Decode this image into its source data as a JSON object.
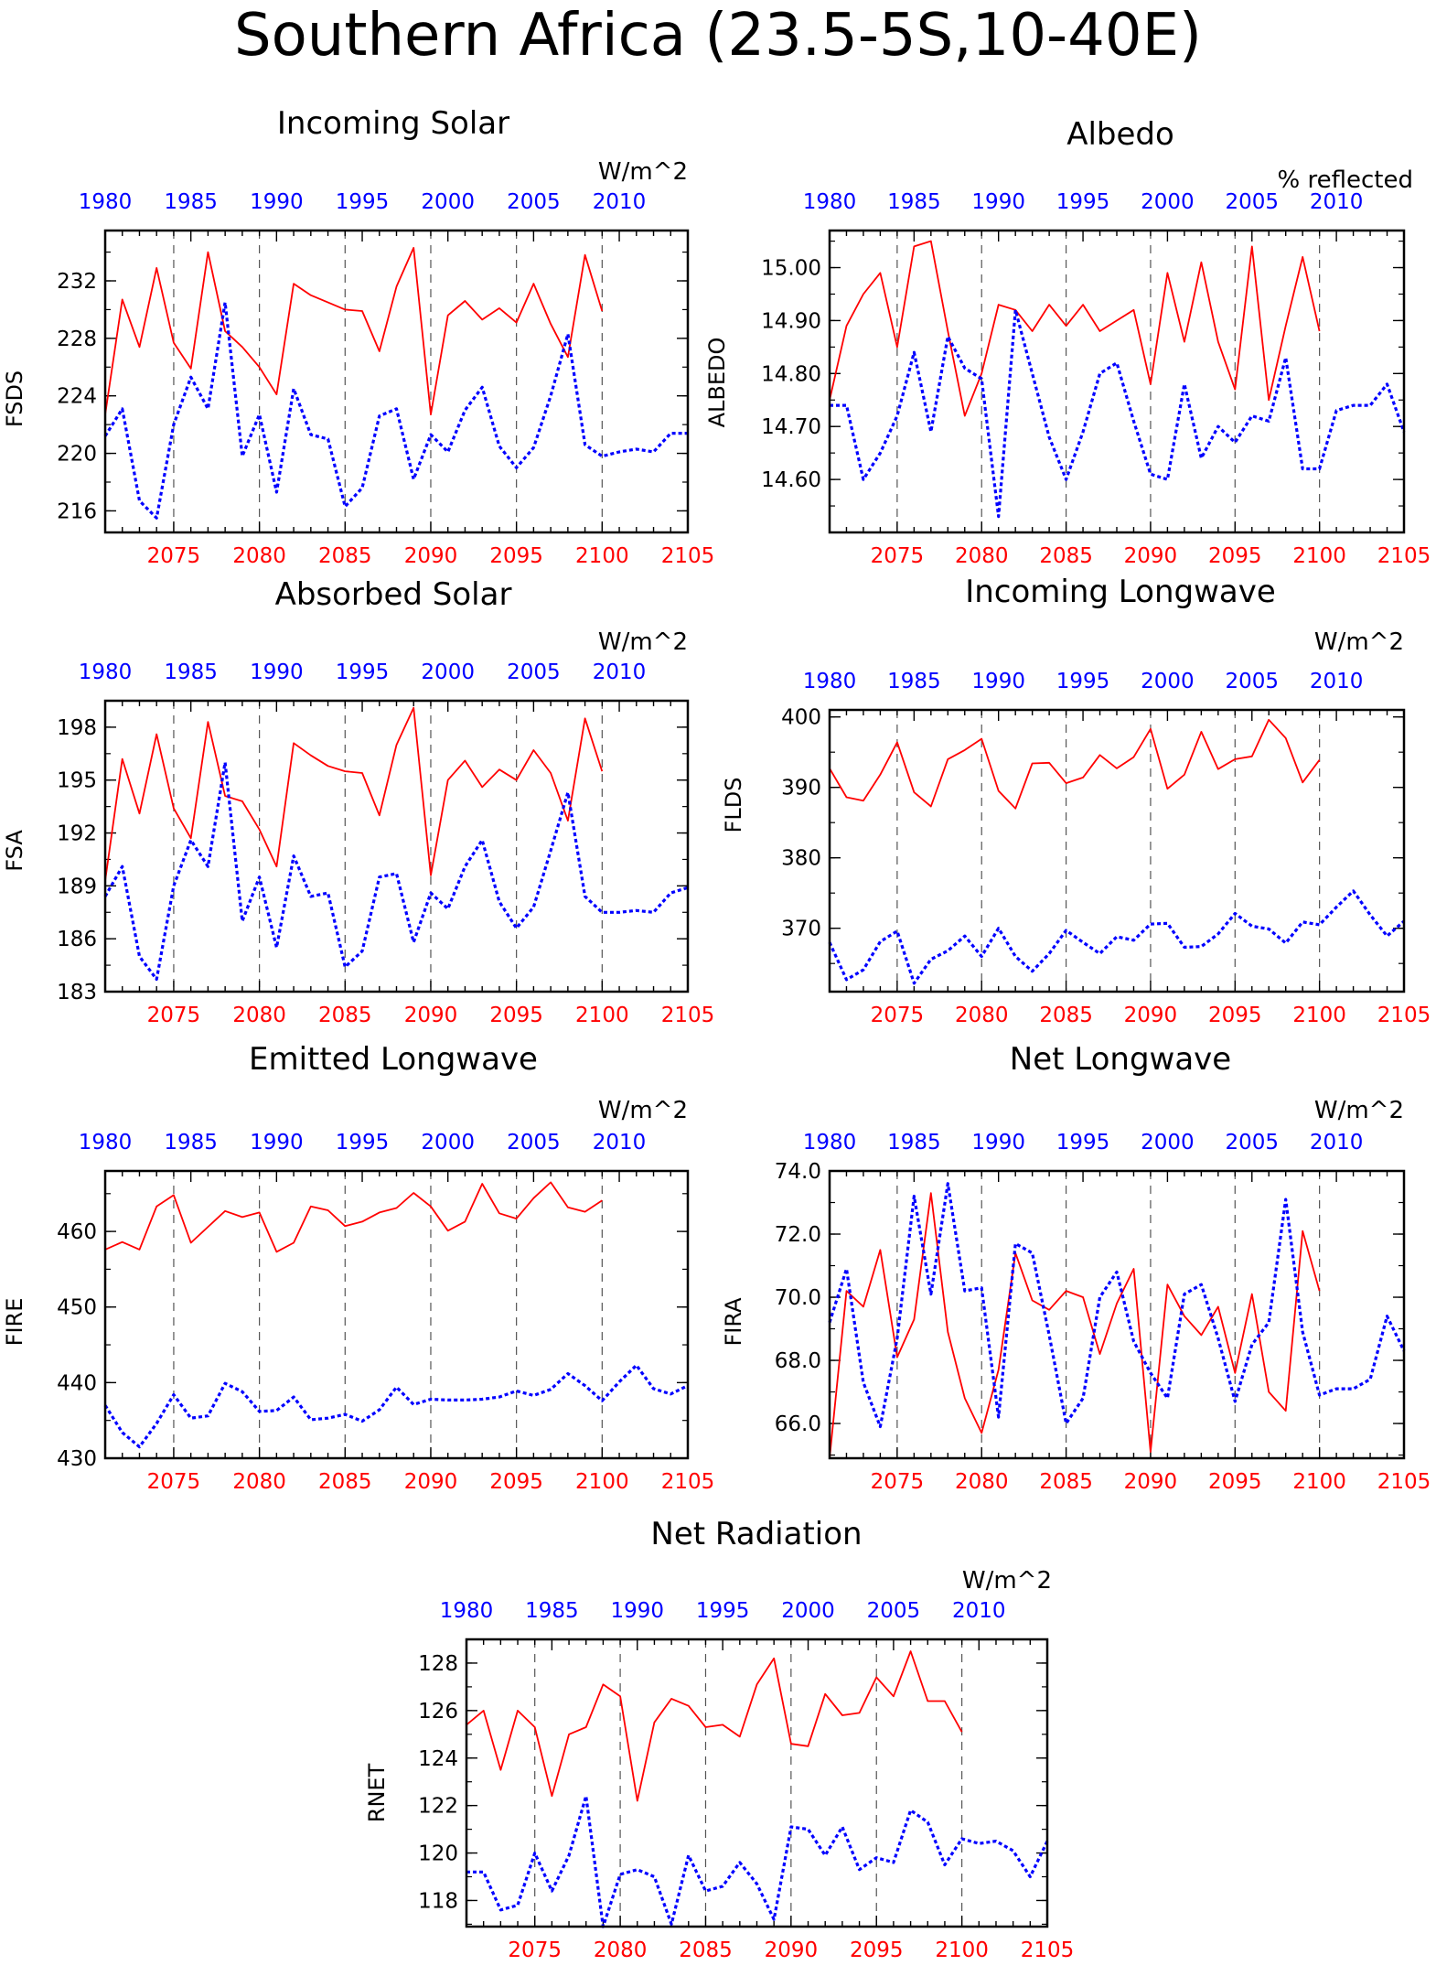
{
  "figure_title": "Southern Africa (23.5-5S,10-40E)",
  "colors": {
    "future_series": "#ff0000",
    "historical_series": "#0000ff",
    "axis": "#000000",
    "gridline": "#555555"
  },
  "chart_data": [
    {
      "id": "fsds",
      "type": "line",
      "title": "Incoming Solar",
      "units": "W/m^2",
      "ylabel": "FSDS",
      "ylim": [
        214.5,
        235.5
      ],
      "yticks": [
        "216",
        "220",
        "224",
        "228",
        "232"
      ],
      "ytick_values": [
        216,
        220,
        224,
        228,
        232
      ],
      "xlim_bottom": [
        2071,
        2105
      ],
      "xticks_bottom": [
        2075,
        2080,
        2085,
        2090,
        2095,
        2100,
        2105
      ],
      "xlim_top": [
        1980,
        2014
      ],
      "xticks_top": [
        1980,
        1985,
        1990,
        1995,
        2000,
        2005,
        2010
      ],
      "vlines": [
        2075,
        2080,
        2085,
        2090,
        2095,
        2100
      ],
      "series": [
        {
          "x_start": 2071,
          "values": [
            222.7,
            230.7,
            227.4,
            232.9,
            227.7,
            225.9,
            234.0,
            228.5,
            227.4,
            226.0,
            224.1,
            231.8,
            231.0,
            230.5,
            230.0,
            229.9,
            227.1,
            231.6,
            234.3,
            222.7,
            229.6,
            230.6,
            229.3,
            230.1,
            229.1,
            231.8,
            229.0,
            226.7,
            233.8,
            229.9
          ]
        },
        {
          "x_start": 2071,
          "values": [
            221.2,
            223.1,
            216.7,
            215.5,
            222.0,
            225.3,
            223.1,
            230.5,
            219.8,
            222.7,
            217.3,
            224.5,
            221.3,
            221.0,
            216.3,
            217.6,
            222.6,
            223.1,
            218.2,
            221.3,
            220.1,
            223.0,
            224.6,
            220.5,
            219.0,
            220.4,
            224.0,
            228.3,
            220.6,
            219.8,
            220.1,
            220.3,
            220.1,
            221.4,
            221.4
          ]
        }
      ]
    },
    {
      "id": "albedo",
      "type": "line",
      "title": "Albedo",
      "units": "% reflected",
      "ylabel": "ALBEDO",
      "ylim": [
        14.5,
        15.07
      ],
      "yticks": [
        "14.60",
        "14.70",
        "14.80",
        "14.90",
        "15.00"
      ],
      "ytick_values": [
        14.6,
        14.7,
        14.8,
        14.9,
        15.0
      ],
      "xlim_bottom": [
        2071,
        2105
      ],
      "xticks_bottom": [
        2075,
        2080,
        2085,
        2090,
        2095,
        2100,
        2105
      ],
      "xlim_top": [
        1980,
        2014
      ],
      "xticks_top": [
        1980,
        1985,
        1990,
        1995,
        2000,
        2005,
        2010
      ],
      "vlines": [
        2075,
        2080,
        2085,
        2090,
        2095,
        2100
      ],
      "series": [
        {
          "x_start": 2071,
          "values": [
            14.75,
            14.89,
            14.95,
            14.99,
            14.85,
            15.04,
            15.05,
            14.88,
            14.72,
            14.8,
            14.93,
            14.92,
            14.88,
            14.93,
            14.89,
            14.93,
            14.88,
            14.9,
            14.92,
            14.78,
            14.99,
            14.86,
            15.01,
            14.86,
            14.77,
            15.04,
            14.75,
            14.89,
            15.02,
            14.88
          ]
        },
        {
          "x_start": 2071,
          "values": [
            14.74,
            14.74,
            14.6,
            14.65,
            14.72,
            14.84,
            14.69,
            14.87,
            14.81,
            14.79,
            14.53,
            14.92,
            14.8,
            14.68,
            14.6,
            14.69,
            14.8,
            14.82,
            14.71,
            14.61,
            14.6,
            14.78,
            14.64,
            14.7,
            14.67,
            14.72,
            14.71,
            14.83,
            14.62,
            14.62,
            14.73,
            14.74,
            14.74,
            14.78,
            14.69
          ]
        }
      ]
    },
    {
      "id": "fsa",
      "type": "line",
      "title": "Absorbed Solar",
      "units": "W/m^2",
      "ylabel": "FSA",
      "ylim": [
        183.0,
        199.5
      ],
      "yticks": [
        "183",
        "186",
        "189",
        "192",
        "195",
        "198"
      ],
      "ytick_values": [
        183,
        186,
        189,
        192,
        195,
        198
      ],
      "xlim_bottom": [
        2071,
        2105
      ],
      "xticks_bottom": [
        2075,
        2080,
        2085,
        2090,
        2095,
        2100,
        2105
      ],
      "xlim_top": [
        1980,
        2014
      ],
      "xticks_top": [
        1980,
        1985,
        1990,
        1995,
        2000,
        2005,
        2010
      ],
      "vlines": [
        2075,
        2080,
        2085,
        2090,
        2095,
        2100
      ],
      "series": [
        {
          "x_start": 2071,
          "values": [
            189.3,
            196.2,
            193.1,
            197.6,
            193.4,
            191.7,
            198.3,
            194.1,
            193.8,
            192.2,
            190.1,
            197.1,
            196.4,
            195.8,
            195.5,
            195.4,
            193.0,
            197.0,
            199.1,
            189.6,
            195.0,
            196.1,
            194.6,
            195.6,
            195.0,
            196.7,
            195.4,
            192.7,
            198.5,
            195.5
          ]
        },
        {
          "x_start": 2071,
          "values": [
            188.4,
            190.1,
            185.0,
            183.7,
            189.0,
            191.6,
            190.1,
            196.0,
            187.0,
            189.5,
            185.5,
            190.7,
            188.4,
            188.6,
            184.4,
            185.3,
            189.5,
            189.7,
            185.8,
            188.6,
            187.7,
            190.1,
            191.6,
            188.1,
            186.6,
            187.8,
            191.0,
            194.3,
            188.4,
            187.5,
            187.5,
            187.6,
            187.5,
            188.6,
            188.9
          ]
        }
      ]
    },
    {
      "id": "flds",
      "type": "line",
      "title": "Incoming Longwave",
      "units": "W/m^2",
      "ylabel": "FLDS",
      "ylim": [
        361.0,
        401.0
      ],
      "yticks": [
        "370",
        "380",
        "390",
        "400"
      ],
      "ytick_values": [
        370,
        380,
        390,
        400
      ],
      "xlim_bottom": [
        2071,
        2105
      ],
      "xticks_bottom": [
        2075,
        2080,
        2085,
        2090,
        2095,
        2100,
        2105
      ],
      "xlim_top": [
        1980,
        2014
      ],
      "xticks_top": [
        1980,
        1985,
        1990,
        1995,
        2000,
        2005,
        2010
      ],
      "vlines": [
        2075,
        2080,
        2085,
        2090,
        2095,
        2100
      ],
      "series": [
        {
          "x_start": 2071,
          "values": [
            392.7,
            388.6,
            388.1,
            391.8,
            396.4,
            389.3,
            387.3,
            394.0,
            395.3,
            396.9,
            389.5,
            387.0,
            393.4,
            393.5,
            390.6,
            391.4,
            394.6,
            392.7,
            394.3,
            398.3,
            389.8,
            391.8,
            397.9,
            392.6,
            394.0,
            394.4,
            399.6,
            397.0,
            390.7,
            393.9
          ]
        },
        {
          "x_start": 2071,
          "values": [
            368.0,
            362.7,
            364.1,
            368.1,
            369.6,
            362.2,
            365.6,
            366.8,
            368.9,
            366.0,
            370.0,
            366.0,
            363.9,
            366.4,
            369.7,
            368.0,
            366.4,
            368.8,
            368.3,
            370.6,
            370.7,
            367.3,
            367.4,
            369.2,
            372.1,
            370.3,
            369.9,
            367.9,
            370.9,
            370.5,
            373.0,
            375.3,
            371.9,
            368.9,
            371.0
          ]
        }
      ]
    },
    {
      "id": "fire",
      "type": "line",
      "title": "Emitted Longwave",
      "units": "W/m^2",
      "ylabel": "FIRE",
      "ylim": [
        430.0,
        468.0
      ],
      "yticks": [
        "430",
        "440",
        "450",
        "460"
      ],
      "ytick_values": [
        430,
        440,
        450,
        460
      ],
      "xlim_bottom": [
        2071,
        2105
      ],
      "xticks_bottom": [
        2075,
        2080,
        2085,
        2090,
        2095,
        2100,
        2105
      ],
      "xlim_top": [
        1980,
        2014
      ],
      "xticks_top": [
        1980,
        1985,
        1990,
        1995,
        2000,
        2005,
        2010
      ],
      "vlines": [
        2075,
        2080,
        2085,
        2090,
        2095,
        2100
      ],
      "series": [
        {
          "x_start": 2071,
          "values": [
            457.6,
            458.6,
            457.6,
            463.3,
            464.8,
            458.5,
            460.6,
            462.7,
            461.9,
            462.5,
            457.3,
            458.5,
            463.3,
            462.8,
            460.7,
            461.3,
            462.5,
            463.1,
            465.1,
            463.3,
            460.1,
            461.3,
            466.3,
            462.4,
            461.7,
            464.4,
            466.5,
            463.2,
            462.6,
            464.1
          ]
        },
        {
          "x_start": 2071,
          "values": [
            437.0,
            433.4,
            431.5,
            434.6,
            438.4,
            435.3,
            435.6,
            439.9,
            438.8,
            436.2,
            436.3,
            438.1,
            435.1,
            435.3,
            435.8,
            434.9,
            436.4,
            439.4,
            437.1,
            437.8,
            437.7,
            437.7,
            437.8,
            438.1,
            438.9,
            438.3,
            439.1,
            441.2,
            439.6,
            437.6,
            440.1,
            442.3,
            439.2,
            438.5,
            439.6
          ]
        }
      ]
    },
    {
      "id": "fira",
      "type": "line",
      "title": "Net Longwave",
      "units": "W/m^2",
      "ylabel": "FIRA",
      "ylim": [
        64.9,
        74.0
      ],
      "yticks": [
        "66.0",
        "68.0",
        "70.0",
        "72.0",
        "74.0"
      ],
      "ytick_values": [
        66.0,
        68.0,
        70.0,
        72.0,
        74.0
      ],
      "xlim_bottom": [
        2071,
        2105
      ],
      "xticks_bottom": [
        2075,
        2080,
        2085,
        2090,
        2095,
        2100,
        2105
      ],
      "xlim_top": [
        1980,
        2014
      ],
      "xticks_top": [
        1980,
        1985,
        1990,
        1995,
        2000,
        2005,
        2010
      ],
      "vlines": [
        2075,
        2080,
        2085,
        2090,
        2095,
        2100
      ],
      "series": [
        {
          "x_start": 2071,
          "values": [
            64.9,
            70.2,
            69.7,
            71.5,
            68.1,
            69.3,
            73.3,
            68.9,
            66.8,
            65.7,
            67.7,
            71.4,
            69.9,
            69.6,
            70.2,
            70.0,
            68.2,
            69.8,
            70.9,
            65.1,
            70.4,
            69.4,
            68.8,
            69.7,
            67.6,
            70.1,
            67.0,
            66.4,
            72.1,
            70.2
          ]
        },
        {
          "x_start": 2071,
          "values": [
            69.2,
            70.9,
            67.3,
            65.9,
            68.7,
            73.2,
            70.1,
            73.6,
            70.2,
            70.3,
            66.2,
            71.7,
            71.4,
            68.8,
            66.0,
            66.8,
            70.0,
            70.8,
            68.6,
            67.6,
            66.8,
            70.1,
            70.4,
            68.7,
            66.7,
            68.5,
            69.2,
            73.1,
            68.9,
            66.9,
            67.1,
            67.1,
            67.4,
            69.4,
            68.3
          ]
        }
      ]
    },
    {
      "id": "rnet",
      "type": "line",
      "title": "Net Radiation",
      "units": "W/m^2",
      "ylabel": "RNET",
      "ylim": [
        116.9,
        129.0
      ],
      "yticks": [
        "118",
        "120",
        "122",
        "124",
        "126",
        "128"
      ],
      "ytick_values": [
        118,
        120,
        122,
        124,
        126,
        128
      ],
      "xlim_bottom": [
        2071,
        2105
      ],
      "xticks_bottom": [
        2075,
        2080,
        2085,
        2090,
        2095,
        2100,
        2105
      ],
      "xlim_top": [
        1980,
        2014
      ],
      "xticks_top": [
        1980,
        1985,
        1990,
        1995,
        2000,
        2005,
        2010
      ],
      "vlines": [
        2075,
        2080,
        2085,
        2090,
        2095,
        2100
      ],
      "series": [
        {
          "x_start": 2071,
          "values": [
            125.4,
            126.0,
            123.5,
            126.0,
            125.3,
            122.4,
            125.0,
            125.3,
            127.1,
            126.6,
            122.2,
            125.5,
            126.5,
            126.2,
            125.3,
            125.4,
            124.9,
            127.1,
            128.2,
            124.6,
            124.5,
            126.7,
            125.8,
            125.9,
            127.4,
            126.6,
            128.5,
            126.4,
            126.4,
            125.1
          ]
        },
        {
          "x_start": 2071,
          "values": [
            119.2,
            119.2,
            117.6,
            117.8,
            120.0,
            118.4,
            119.9,
            122.4,
            116.9,
            119.1,
            119.3,
            119.0,
            117.0,
            119.9,
            118.4,
            118.6,
            119.6,
            118.7,
            117.2,
            121.1,
            121.0,
            119.9,
            121.1,
            119.3,
            119.8,
            119.6,
            121.8,
            121.3,
            119.5,
            120.6,
            120.4,
            120.5,
            120.1,
            119.0,
            120.5
          ]
        }
      ]
    }
  ]
}
